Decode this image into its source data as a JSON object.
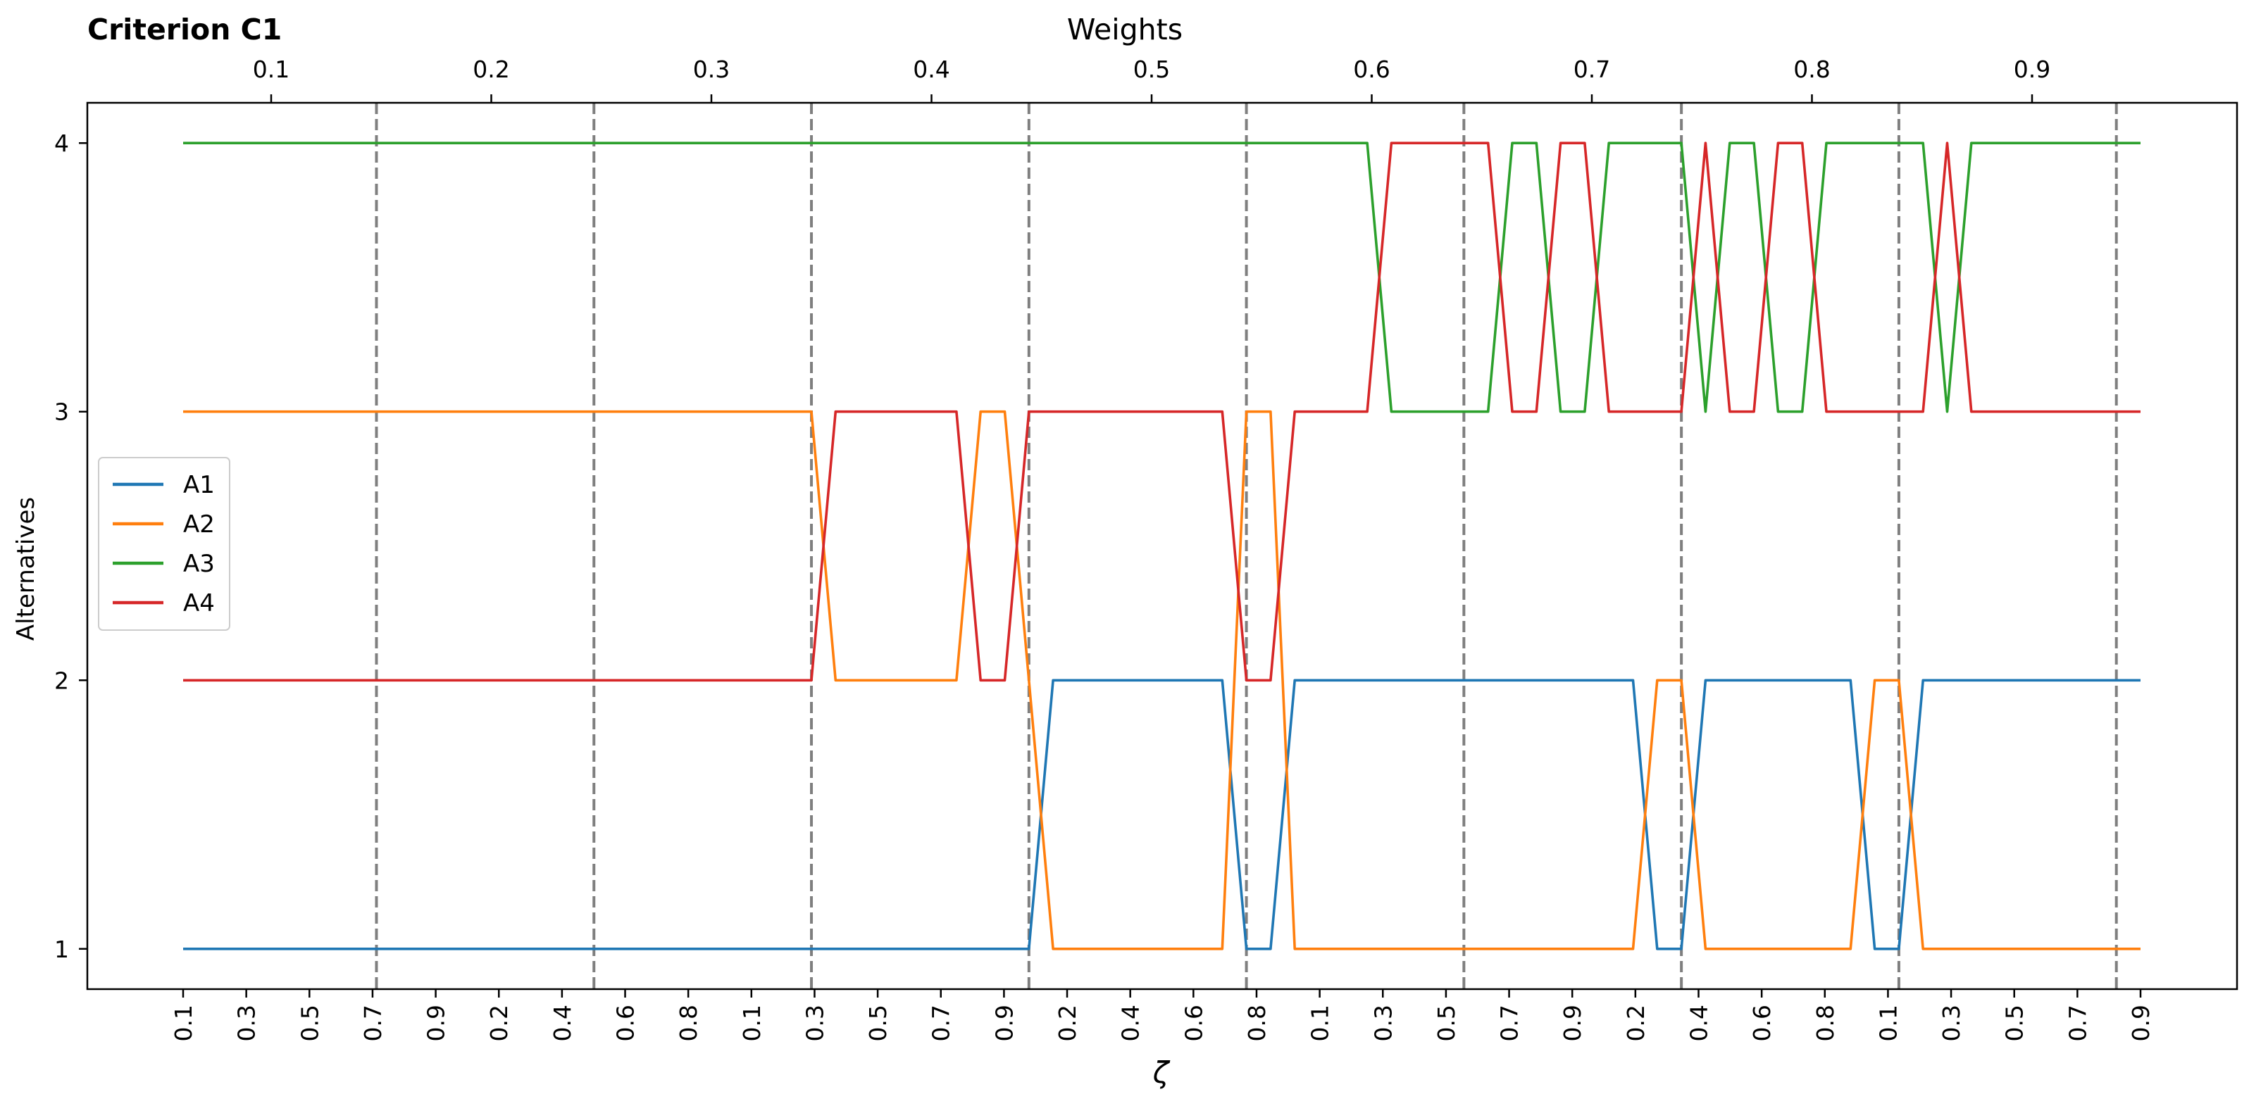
{
  "chart_data": {
    "type": "line",
    "title": "Criterion C1",
    "top_axis_label": "Weights",
    "top_ticks": [
      "0.1",
      "0.2",
      "0.3",
      "0.4",
      "0.5",
      "0.6",
      "0.7",
      "0.8",
      "0.9"
    ],
    "xlabel": "ζ",
    "ylabel": "Alternatives",
    "y_ticks": [
      "1",
      "2",
      "3",
      "4"
    ],
    "ylim": [
      0.85,
      4.15
    ],
    "x_tick_labels": [
      "0.1",
      "0.3",
      "0.5",
      "0.7",
      "0.9",
      "0.2",
      "0.4",
      "0.6",
      "0.8",
      "0.1",
      "0.3",
      "0.5",
      "0.7",
      "0.9",
      "0.2",
      "0.4",
      "0.6",
      "0.8",
      "0.1",
      "0.3",
      "0.5",
      "0.7",
      "0.9",
      "0.2",
      "0.4",
      "0.6",
      "0.8",
      "0.1",
      "0.3",
      "0.5",
      "0.7",
      "0.9"
    ],
    "legend_location": "center-left",
    "colors": {
      "A1": "#1f77b4",
      "A2": "#ff7f0e",
      "A3": "#2ca02c",
      "A4": "#d62728",
      "divider": "#7f7f7f"
    },
    "series": [
      {
        "name": "A1",
        "points": [
          [
            0,
            1
          ],
          [
            35,
            1
          ],
          [
            36,
            2
          ],
          [
            43,
            2
          ],
          [
            44,
            1
          ],
          [
            45,
            1
          ],
          [
            46,
            2
          ],
          [
            60,
            2
          ],
          [
            61,
            1
          ],
          [
            62,
            1
          ],
          [
            63,
            2
          ],
          [
            69,
            2
          ],
          [
            70,
            1
          ],
          [
            71,
            1
          ],
          [
            72,
            2
          ],
          [
            81,
            2
          ]
        ]
      },
      {
        "name": "A2",
        "points": [
          [
            0,
            3
          ],
          [
            26,
            3
          ],
          [
            27,
            2
          ],
          [
            32,
            2
          ],
          [
            33,
            3
          ],
          [
            34,
            3
          ],
          [
            35,
            2
          ],
          [
            36,
            1
          ],
          [
            43,
            1
          ],
          [
            44,
            3
          ],
          [
            45,
            3
          ],
          [
            46,
            1
          ],
          [
            60,
            1
          ],
          [
            61,
            2
          ],
          [
            62,
            2
          ],
          [
            63,
            1
          ],
          [
            69,
            1
          ],
          [
            70,
            2
          ],
          [
            71,
            2
          ],
          [
            72,
            1
          ],
          [
            81,
            1
          ]
        ]
      },
      {
        "name": "A3",
        "points": [
          [
            0,
            4
          ],
          [
            49,
            4
          ],
          [
            50,
            3
          ],
          [
            54,
            3
          ],
          [
            55,
            4
          ],
          [
            56,
            4
          ],
          [
            57,
            3
          ],
          [
            58,
            3
          ],
          [
            59,
            4
          ],
          [
            62,
            4
          ],
          [
            63,
            3
          ],
          [
            64,
            4
          ],
          [
            65,
            4
          ],
          [
            66,
            3
          ],
          [
            67,
            3
          ],
          [
            68,
            4
          ],
          [
            72,
            4
          ],
          [
            73,
            3
          ],
          [
            74,
            4
          ],
          [
            81,
            4
          ]
        ]
      },
      {
        "name": "A4",
        "points": [
          [
            0,
            2
          ],
          [
            26,
            2
          ],
          [
            27,
            3
          ],
          [
            32,
            3
          ],
          [
            33,
            2
          ],
          [
            34,
            2
          ],
          [
            35,
            3
          ],
          [
            43,
            3
          ],
          [
            44,
            2
          ],
          [
            45,
            2
          ],
          [
            46,
            3
          ],
          [
            49,
            3
          ],
          [
            50,
            4
          ],
          [
            54,
            4
          ],
          [
            55,
            3
          ],
          [
            56,
            3
          ],
          [
            57,
            4
          ],
          [
            58,
            4
          ],
          [
            59,
            3
          ],
          [
            62,
            3
          ],
          [
            63,
            4
          ],
          [
            64,
            3
          ],
          [
            65,
            3
          ],
          [
            66,
            4
          ],
          [
            67,
            4
          ],
          [
            68,
            3
          ],
          [
            72,
            3
          ],
          [
            73,
            4
          ],
          [
            74,
            3
          ],
          [
            81,
            3
          ]
        ]
      }
    ],
    "n_steps": 81,
    "dividers": [
      8,
      17,
      26,
      35,
      44,
      53,
      62,
      71,
      80
    ]
  }
}
